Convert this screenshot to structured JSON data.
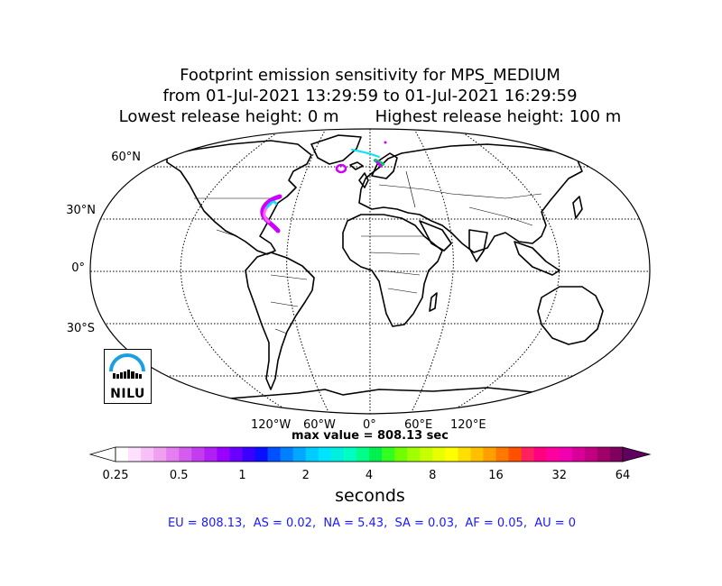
{
  "title": {
    "line1": "Footprint emission sensitivity for MPS_MEDIUM",
    "line2": "from 01-Jul-2021 13:29:59 to 01-Jul-2021 16:29:59",
    "line3": "Lowest release height: 0 m       Highest release height: 100 m"
  },
  "map": {
    "projection": "Robinson",
    "lat_labels": [
      "60°N",
      "30°N",
      "0°",
      "30°S"
    ],
    "lon_labels": [
      "120°W",
      "60°W",
      "0°",
      "60°E",
      "120°E"
    ],
    "graticule": "dotted",
    "colors": {
      "land_outline": "#000000",
      "background": "#ffffff"
    },
    "plumes": [
      {
        "region": "North America east coast",
        "colors": [
          "#cc00ff",
          "#ff66ff",
          "#00e5ff"
        ]
      },
      {
        "region": "Greenland / North Atlantic",
        "colors": [
          "#cc00ff",
          "#00e5ff"
        ]
      },
      {
        "region": "Scandinavia / Norwegian Sea",
        "colors": [
          "#00e5ff",
          "#00cc66",
          "#cc00ff"
        ]
      }
    ]
  },
  "max_value": "max value = 808.13 sec",
  "colorbar": {
    "ticks": [
      "0.25",
      "0.5",
      "1",
      "2",
      "4",
      "8",
      "16",
      "32",
      "64"
    ],
    "label": "seconds",
    "extend": "both",
    "colors": [
      "#ffffff",
      "#fde0fd",
      "#f8c0f8",
      "#f0a0f0",
      "#e57ef0",
      "#d65cf0",
      "#c43cf0",
      "#b020f5",
      "#9a00ff",
      "#6a00ff",
      "#3a00ff",
      "#0a10ff",
      "#0050ff",
      "#0080ff",
      "#00a8ff",
      "#00ccff",
      "#00e5ff",
      "#00f0e0",
      "#00ffc0",
      "#00ff88",
      "#00f050",
      "#30ff20",
      "#70ff00",
      "#a0ff00",
      "#c8ff00",
      "#e8ff00",
      "#ffff00",
      "#ffe000",
      "#ffc000",
      "#ffa000",
      "#ff7800",
      "#ff5000",
      "#ff2060",
      "#ff0080",
      "#ff00a0",
      "#f000b0",
      "#d80098",
      "#c00080",
      "#a0006a",
      "#800060"
    ],
    "over_color": "#600060",
    "under_color": "#ffffff"
  },
  "region_stats": "EU = 808.13,  AS = 0.02,  NA = 5.43,  SA = 0.03,  AF = 0.05,  AU = 0",
  "logo": {
    "text": "NILU",
    "accent": "#1aa0e0"
  }
}
